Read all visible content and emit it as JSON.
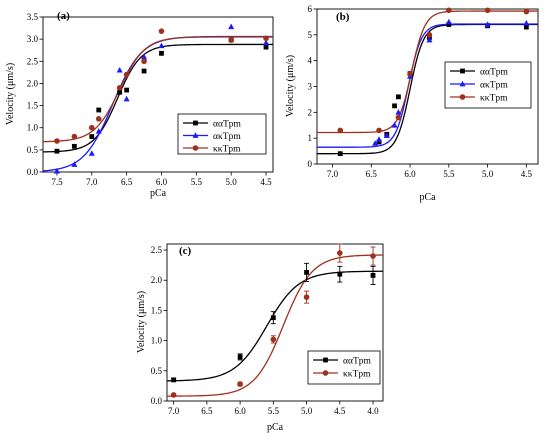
{
  "chart_data": [
    {
      "panel": "(a)",
      "type": "scatter",
      "xlabel": "pCa",
      "ylabel": "Velocity (μm/s)",
      "xlim": [
        7.7,
        4.4
      ],
      "ylim": [
        0,
        3.5
      ],
      "x_ticks": [
        "7.5",
        "7.0",
        "6.5",
        "6.0",
        "5.5",
        "5.0",
        "4.5"
      ],
      "y_ticks": [
        "0.0",
        "0.5",
        "1.0",
        "1.5",
        "2.0",
        "2.5",
        "3.0",
        "3.5"
      ],
      "legend_position": "right",
      "series": [
        {
          "name": "ααTpm",
          "color": "#000000",
          "marker": "square",
          "x": [
            7.5,
            7.25,
            7.0,
            6.9,
            6.6,
            6.5,
            6.25,
            6.0,
            5.0,
            4.5
          ],
          "y": [
            0.47,
            0.58,
            0.8,
            1.4,
            1.8,
            1.85,
            2.28,
            2.68,
            2.98,
            2.82
          ],
          "fit": {
            "bottom": 0.45,
            "top": 2.88,
            "pCa50": 6.63,
            "slope": 2.6
          }
        },
        {
          "name": "ακTpm",
          "color": "#1a1aff",
          "marker": "triangle",
          "x": [
            7.5,
            7.25,
            7.0,
            6.9,
            6.6,
            6.5,
            6.25,
            6.0,
            5.0,
            4.5
          ],
          "y": [
            0.02,
            0.17,
            0.42,
            0.92,
            2.3,
            1.65,
            2.6,
            2.85,
            3.28,
            2.92
          ],
          "fit": {
            "bottom": 0.0,
            "top": 3.06,
            "pCa50": 6.7,
            "slope": 2.1
          }
        },
        {
          "name": "κκTpm",
          "color": "#a0301e",
          "marker": "circle",
          "x": [
            7.5,
            7.25,
            7.0,
            6.9,
            6.6,
            6.5,
            6.25,
            6.0,
            5.0,
            4.5
          ],
          "y": [
            0.7,
            0.8,
            1.0,
            1.2,
            1.9,
            2.2,
            2.5,
            3.18,
            2.98,
            3.02
          ],
          "fit": {
            "bottom": 0.68,
            "top": 3.05,
            "pCa50": 6.6,
            "slope": 2.4
          }
        }
      ]
    },
    {
      "panel": "(b)",
      "type": "scatter",
      "xlabel": "pCa",
      "ylabel": "Velocity (μm/s)",
      "xlim": [
        7.2,
        4.35
      ],
      "ylim": [
        0,
        6
      ],
      "x_ticks": [
        "7.0",
        "6.5",
        "6.0",
        "5.5",
        "5.0",
        "4.5"
      ],
      "y_ticks": [
        "0",
        "1",
        "2",
        "3",
        "4",
        "5",
        "6"
      ],
      "legend_position": "right",
      "series": [
        {
          "name": "ααTpm",
          "color": "#000000",
          "marker": "square",
          "x": [
            6.9,
            6.4,
            6.3,
            6.2,
            6.15,
            6.0,
            5.75,
            5.5,
            5.0,
            4.5
          ],
          "y": [
            0.4,
            0.85,
            1.15,
            2.25,
            2.6,
            3.5,
            4.9,
            5.4,
            5.35,
            5.3
          ],
          "fit": {
            "bottom": 0.4,
            "top": 5.4,
            "pCa50": 6.0,
            "slope": 5.0
          }
        },
        {
          "name": "ακTpm",
          "color": "#1a1aff",
          "marker": "triangle",
          "x": [
            6.45,
            6.4,
            6.3,
            6.2,
            6.15,
            6.0,
            5.75,
            5.5,
            5.0,
            4.5
          ],
          "y": [
            0.8,
            0.95,
            1.1,
            1.5,
            2.0,
            3.4,
            4.8,
            5.5,
            5.4,
            5.45
          ],
          "fit": {
            "bottom": 0.65,
            "top": 5.42,
            "pCa50": 6.02,
            "slope": 5.2
          }
        },
        {
          "name": "κκTpm",
          "color": "#a0301e",
          "marker": "circle",
          "x": [
            6.9,
            6.4,
            6.15,
            6.0,
            5.75,
            5.5,
            5.0,
            4.5
          ],
          "y": [
            1.3,
            1.3,
            1.8,
            3.5,
            5.0,
            5.95,
            5.95,
            5.9
          ],
          "fit": {
            "bottom": 1.22,
            "top": 5.92,
            "pCa50": 5.98,
            "slope": 5.0
          }
        }
      ]
    },
    {
      "panel": "(c)",
      "type": "scatter",
      "xlabel": "pCa",
      "ylabel": "Velocity (μm/s)",
      "xlim": [
        7.1,
        3.85
      ],
      "ylim": [
        0,
        2.6
      ],
      "x_ticks": [
        "7.0",
        "6.5",
        "6.0",
        "5.5",
        "5.0",
        "4.5",
        "4.0"
      ],
      "y_ticks": [
        "0.0",
        "0.5",
        "1.0",
        "1.5",
        "2.0",
        "2.5"
      ],
      "legend_position": "right",
      "series": [
        {
          "name": "ααTpm",
          "color": "#000000",
          "marker": "square",
          "x": [
            7.0,
            6.0,
            5.5,
            5.0,
            4.5,
            4.0
          ],
          "y": [
            0.35,
            0.73,
            1.38,
            2.13,
            2.1,
            2.08
          ],
          "err": [
            0.02,
            0.05,
            0.1,
            0.15,
            0.13,
            0.15
          ],
          "fit": {
            "bottom": 0.33,
            "top": 2.15,
            "pCa50": 5.6,
            "slope": 1.8
          }
        },
        {
          "name": "κκTpm",
          "color": "#a0301e",
          "marker": "circle",
          "x": [
            7.0,
            6.0,
            5.5,
            5.0,
            4.5,
            4.0
          ],
          "y": [
            0.1,
            0.28,
            1.02,
            1.72,
            2.45,
            2.4
          ],
          "err": [
            0.02,
            0.03,
            0.06,
            0.1,
            0.15,
            0.15
          ],
          "fit": {
            "bottom": 0.08,
            "top": 2.42,
            "pCa50": 5.35,
            "slope": 2.0
          }
        }
      ]
    }
  ]
}
